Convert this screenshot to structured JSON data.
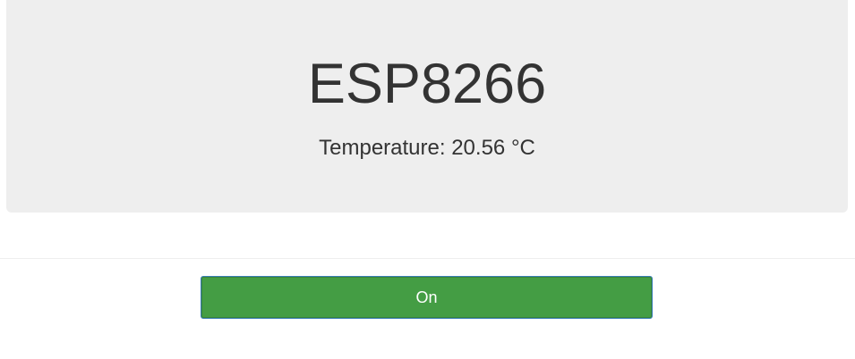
{
  "header": {
    "title": "ESP8266",
    "temperature_label": "Temperature:",
    "temperature_value": "20.56",
    "temperature_unit": "°C"
  },
  "controls": {
    "toggle_label": "On",
    "toggle_color": "#449d44"
  },
  "colors": {
    "panel_background": "#eeeeee",
    "text": "#333333"
  }
}
